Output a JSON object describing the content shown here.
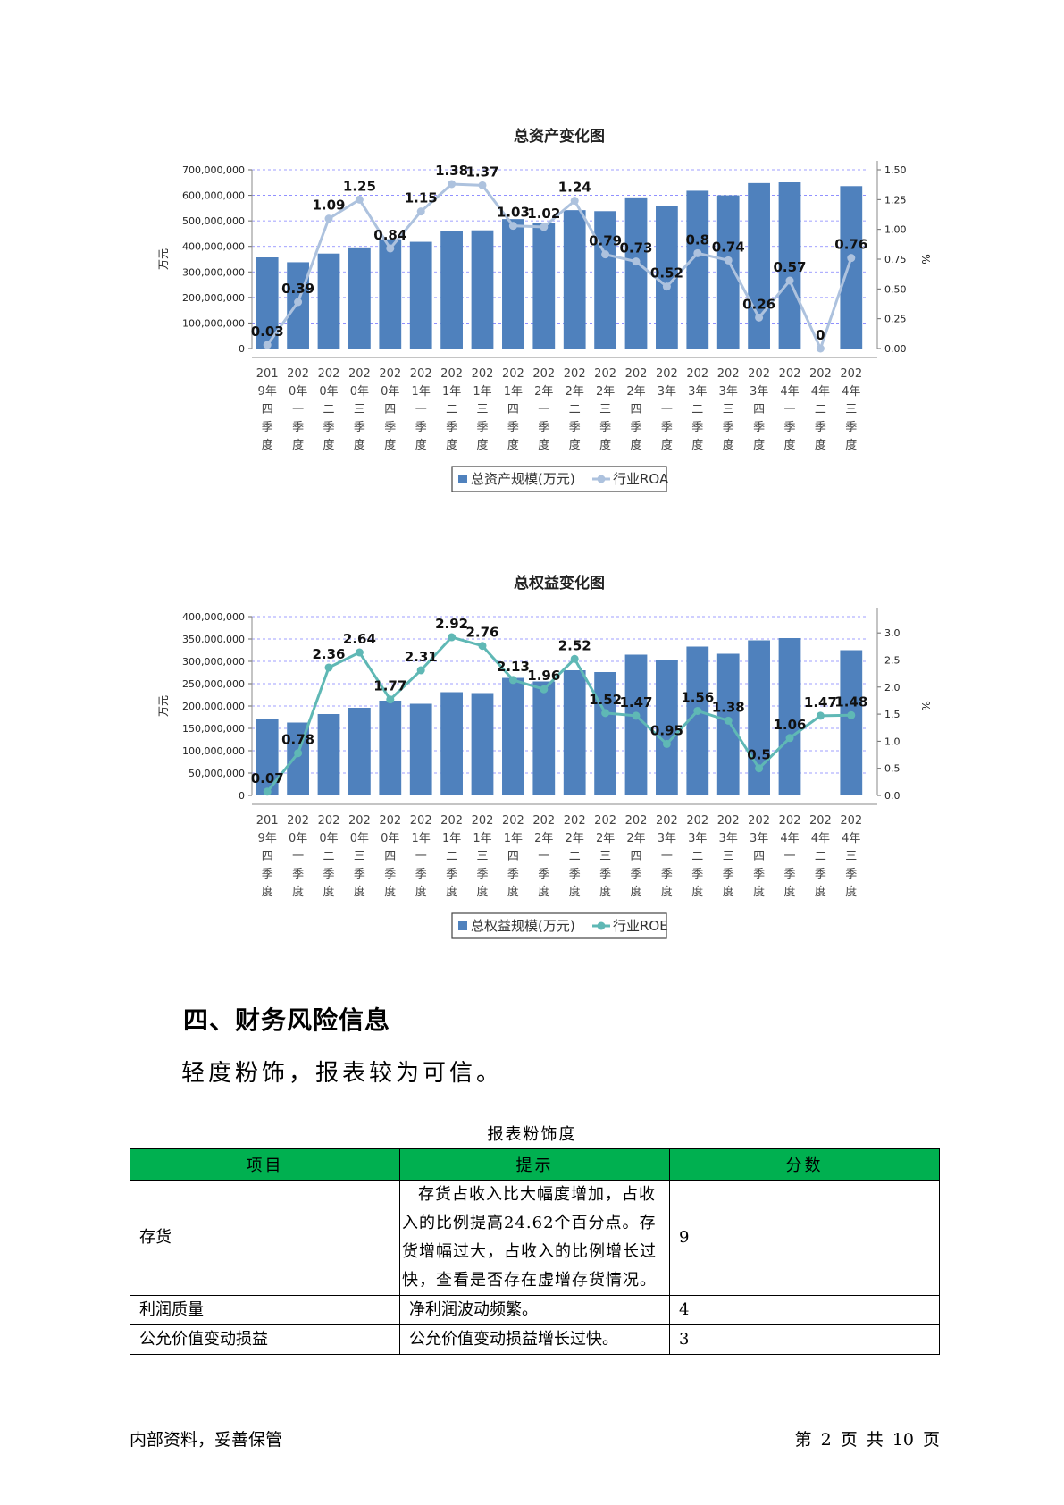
{
  "chart_data": [
    {
      "type": "bar+line",
      "title": "总资产变化图",
      "ylabel": "万元",
      "y2label": "%",
      "ylim": [
        0,
        700000000
      ],
      "y2lim": [
        0,
        1.5
      ],
      "yticks": [
        "0",
        "100,000,000",
        "200,000,000",
        "300,000,000",
        "400,000,000",
        "500,000,000",
        "600,000,000",
        "700,000,000"
      ],
      "y2ticks": [
        "0.00",
        "0.25",
        "0.50",
        "0.75",
        "1.00",
        "1.25",
        "1.50"
      ],
      "categories": [
        "2019年四季度",
        "2020年一季度",
        "2020年二季度",
        "2020年三季度",
        "2020年四季度",
        "2021年一季度",
        "2021年二季度",
        "2021年三季度",
        "2021年四季度",
        "2022年一季度",
        "2022年二季度",
        "2022年三季度",
        "2022年四季度",
        "2023年一季度",
        "2023年二季度",
        "2023年三季度",
        "2023年四季度",
        "2024年一季度",
        "2024年二季度",
        "2024年三季度"
      ],
      "cat_lines": [
        [
          "201",
          "9年",
          "四",
          "季",
          "度"
        ],
        [
          "202",
          "0年",
          "一",
          "季",
          "度"
        ],
        [
          "202",
          "0年",
          "二",
          "季",
          "度"
        ],
        [
          "202",
          "0年",
          "三",
          "季",
          "度"
        ],
        [
          "202",
          "0年",
          "四",
          "季",
          "度"
        ],
        [
          "202",
          "1年",
          "一",
          "季",
          "度"
        ],
        [
          "202",
          "1年",
          "二",
          "季",
          "度"
        ],
        [
          "202",
          "1年",
          "三",
          "季",
          "度"
        ],
        [
          "202",
          "1年",
          "四",
          "季",
          "度"
        ],
        [
          "202",
          "2年",
          "一",
          "季",
          "度"
        ],
        [
          "202",
          "2年",
          "二",
          "季",
          "度"
        ],
        [
          "202",
          "2年",
          "三",
          "季",
          "度"
        ],
        [
          "202",
          "2年",
          "四",
          "季",
          "度"
        ],
        [
          "202",
          "3年",
          "一",
          "季",
          "度"
        ],
        [
          "202",
          "3年",
          "二",
          "季",
          "度"
        ],
        [
          "202",
          "3年",
          "三",
          "季",
          "度"
        ],
        [
          "202",
          "3年",
          "四",
          "季",
          "度"
        ],
        [
          "202",
          "4年",
          "一",
          "季",
          "度"
        ],
        [
          "202",
          "4年",
          "二",
          "季",
          "度"
        ],
        [
          "202",
          "4年",
          "三",
          "季",
          "度"
        ]
      ],
      "series": [
        {
          "name": "总资产规模(万元)",
          "kind": "bar",
          "color": "#4f81bd",
          "values": [
            357000000,
            338000000,
            372000000,
            396000000,
            428000000,
            418000000,
            460000000,
            463000000,
            507000000,
            492000000,
            542000000,
            538000000,
            592000000,
            560000000,
            618000000,
            600000000,
            648000000,
            651000000,
            null,
            636000000
          ]
        },
        {
          "name": "行业ROA",
          "kind": "line",
          "color": "#adc2de",
          "values": [
            0.03,
            0.39,
            1.09,
            1.25,
            0.84,
            1.15,
            1.38,
            1.37,
            1.03,
            1.02,
            1.24,
            0.79,
            0.73,
            0.52,
            0.8,
            0.74,
            0.26,
            0.57,
            0,
            0.76
          ],
          "labels": [
            "0.03",
            "0.39",
            "1.09",
            "1.25",
            "0.84",
            "1.15",
            "1.38",
            "1.37",
            "1.03",
            "1.02",
            "1.24",
            "0.79",
            "0.73",
            "0.52",
            "0.8",
            "0.74",
            "0.26",
            "0.57",
            "0",
            "0.76"
          ]
        }
      ],
      "grid": true,
      "legend": "bottom"
    },
    {
      "type": "bar+line",
      "title": "总权益变化图",
      "ylabel": "万元",
      "y2label": "%",
      "ylim": [
        0,
        400000000
      ],
      "y2lim": [
        0,
        3.3
      ],
      "yticks": [
        "0",
        "50,000,000",
        "100,000,000",
        "150,000,000",
        "200,000,000",
        "250,000,000",
        "300,000,000",
        "350,000,000",
        "400,000,000"
      ],
      "y2ticks": [
        "0.0",
        "0.5",
        "1.0",
        "1.5",
        "2.0",
        "2.5",
        "3.0"
      ],
      "categories": [
        "2019年四季度",
        "2020年一季度",
        "2020年二季度",
        "2020年三季度",
        "2020年四季度",
        "2021年一季度",
        "2021年二季度",
        "2021年三季度",
        "2021年四季度",
        "2022年一季度",
        "2022年二季度",
        "2022年三季度",
        "2022年四季度",
        "2023年一季度",
        "2023年二季度",
        "2023年三季度",
        "2023年四季度",
        "2024年一季度",
        "2024年二季度",
        "2024年三季度"
      ],
      "cat_lines": [
        [
          "201",
          "9年",
          "四",
          "季",
          "度"
        ],
        [
          "202",
          "0年",
          "一",
          "季",
          "度"
        ],
        [
          "202",
          "0年",
          "二",
          "季",
          "度"
        ],
        [
          "202",
          "0年",
          "三",
          "季",
          "度"
        ],
        [
          "202",
          "0年",
          "四",
          "季",
          "度"
        ],
        [
          "202",
          "1年",
          "一",
          "季",
          "度"
        ],
        [
          "202",
          "1年",
          "二",
          "季",
          "度"
        ],
        [
          "202",
          "1年",
          "三",
          "季",
          "度"
        ],
        [
          "202",
          "1年",
          "四",
          "季",
          "度"
        ],
        [
          "202",
          "2年",
          "一",
          "季",
          "度"
        ],
        [
          "202",
          "2年",
          "二",
          "季",
          "度"
        ],
        [
          "202",
          "2年",
          "三",
          "季",
          "度"
        ],
        [
          "202",
          "2年",
          "四",
          "季",
          "度"
        ],
        [
          "202",
          "3年",
          "一",
          "季",
          "度"
        ],
        [
          "202",
          "3年",
          "二",
          "季",
          "度"
        ],
        [
          "202",
          "3年",
          "三",
          "季",
          "度"
        ],
        [
          "202",
          "3年",
          "四",
          "季",
          "度"
        ],
        [
          "202",
          "4年",
          "一",
          "季",
          "度"
        ],
        [
          "202",
          "4年",
          "二",
          "季",
          "度"
        ],
        [
          "202",
          "4年",
          "三",
          "季",
          "度"
        ]
      ],
      "series": [
        {
          "name": "总权益规模(万元)",
          "kind": "bar",
          "color": "#4f81bd",
          "values": [
            170000000,
            163000000,
            182000000,
            196000000,
            212000000,
            205000000,
            231000000,
            229000000,
            263000000,
            255000000,
            280000000,
            276000000,
            315000000,
            302000000,
            333000000,
            317000000,
            347000000,
            352000000,
            null,
            325000000
          ]
        },
        {
          "name": "行业ROE",
          "kind": "line",
          "color": "#5fb8b5",
          "values": [
            0.07,
            0.78,
            2.36,
            2.64,
            1.77,
            2.31,
            2.92,
            2.76,
            2.13,
            1.96,
            2.52,
            1.52,
            1.47,
            0.95,
            1.56,
            1.38,
            0.5,
            1.06,
            1.47,
            1.48
          ],
          "labels": [
            "0.07",
            "0.78",
            "2.36",
            "2.64",
            "1.77",
            "2.31",
            "2.92",
            "2.76",
            "2.13",
            "1.96",
            "2.52",
            "1.52",
            "1.47",
            "0.95",
            "1.56",
            "1.38",
            "0.5",
            "1.06",
            "1.47",
            "1.48"
          ]
        }
      ],
      "grid": true,
      "legend": "bottom"
    }
  ],
  "section": {
    "heading": "四、财务风险信息",
    "conclusion": "轻度粉饰，报表较为可信。"
  },
  "table": {
    "caption": "报表粉饰度",
    "headers": [
      "项目",
      "提示",
      "分数"
    ],
    "rows": [
      {
        "item": "存货",
        "hint": "存货占收入比大幅度增加，占收入的比例提高24.62个百分点。存货增幅过大，占收入的比例增长过快，查看是否存在虚增存货情况。",
        "score": "9"
      },
      {
        "item": "利润质量",
        "hint": "净利润波动频繁。",
        "score": "4"
      },
      {
        "item": "公允价值变动损益",
        "hint": "公允价值变动损益增长过快。",
        "score": "3"
      }
    ]
  },
  "footer": {
    "left": "内部资料，妥善保管",
    "right": "第 2 页   共 10 页"
  }
}
